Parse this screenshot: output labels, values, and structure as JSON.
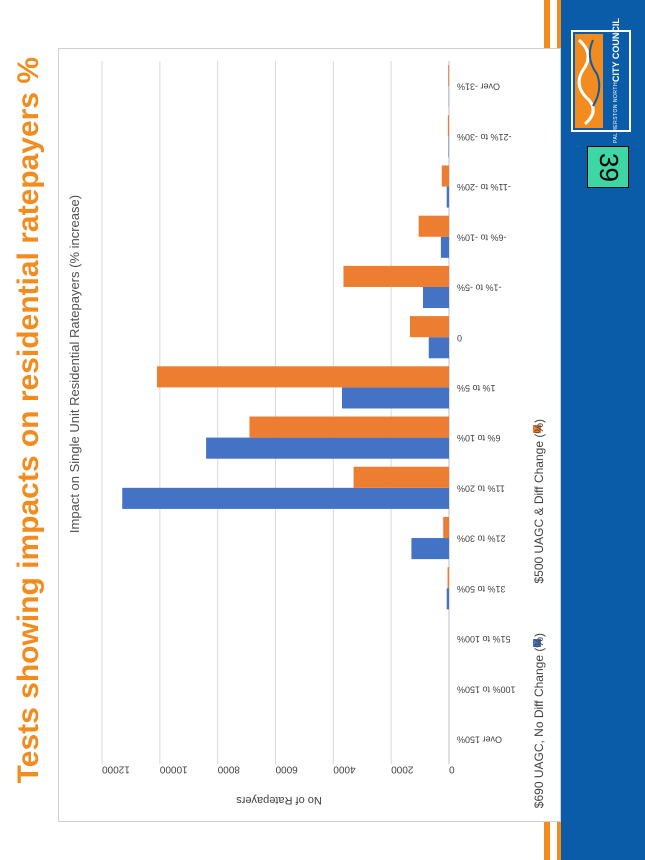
{
  "slide": {
    "title": "Tests showing impacts on residential ratepayers %",
    "page_number": "39",
    "logo_line1": "PALMERSTON NORTH",
    "logo_line2": "CITY COUNCIL"
  },
  "colors": {
    "series1": "#4472c4",
    "series2": "#ed7d31",
    "accent": "#f28c1e",
    "sidebar": "#0a5ca8"
  },
  "chart_data": {
    "type": "bar",
    "orientation": "horizontal",
    "title": "Impact on Single Unit Residential Ratepayers  (% increase)",
    "xlabel": "No of Ratepayers",
    "ylabel": "",
    "xlim": [
      0,
      12000
    ],
    "ticks": [
      0,
      2000,
      4000,
      6000,
      8000,
      10000,
      12000
    ],
    "tick_labels": [
      "0",
      "2000",
      "4000",
      "6000",
      "8000",
      "10000",
      "12000"
    ],
    "categories": [
      "Over 150%",
      "100% to 150%",
      "51% to 100%",
      "31% to 50%",
      "21% to 30%",
      "11% to 20%",
      "6% to 10%",
      "1% to 5%",
      "0",
      "-1% to -5%",
      "-6% to -10%",
      "-11% to -20%",
      "-21% to -30%",
      "Over -31%"
    ],
    "series": [
      {
        "name": "$690 UAGC, No Diff Change (%)",
        "values": [
          0,
          0,
          0,
          80,
          1300,
          11300,
          8400,
          3700,
          700,
          900,
          280,
          80,
          20,
          10
        ]
      },
      {
        "name": "$500 UAGC & Diff Change (%)",
        "values": [
          0,
          0,
          0,
          50,
          200,
          3300,
          6900,
          10100,
          1350,
          3650,
          1050,
          250,
          40,
          30
        ]
      }
    ],
    "grid": true,
    "legend": "bottom"
  }
}
